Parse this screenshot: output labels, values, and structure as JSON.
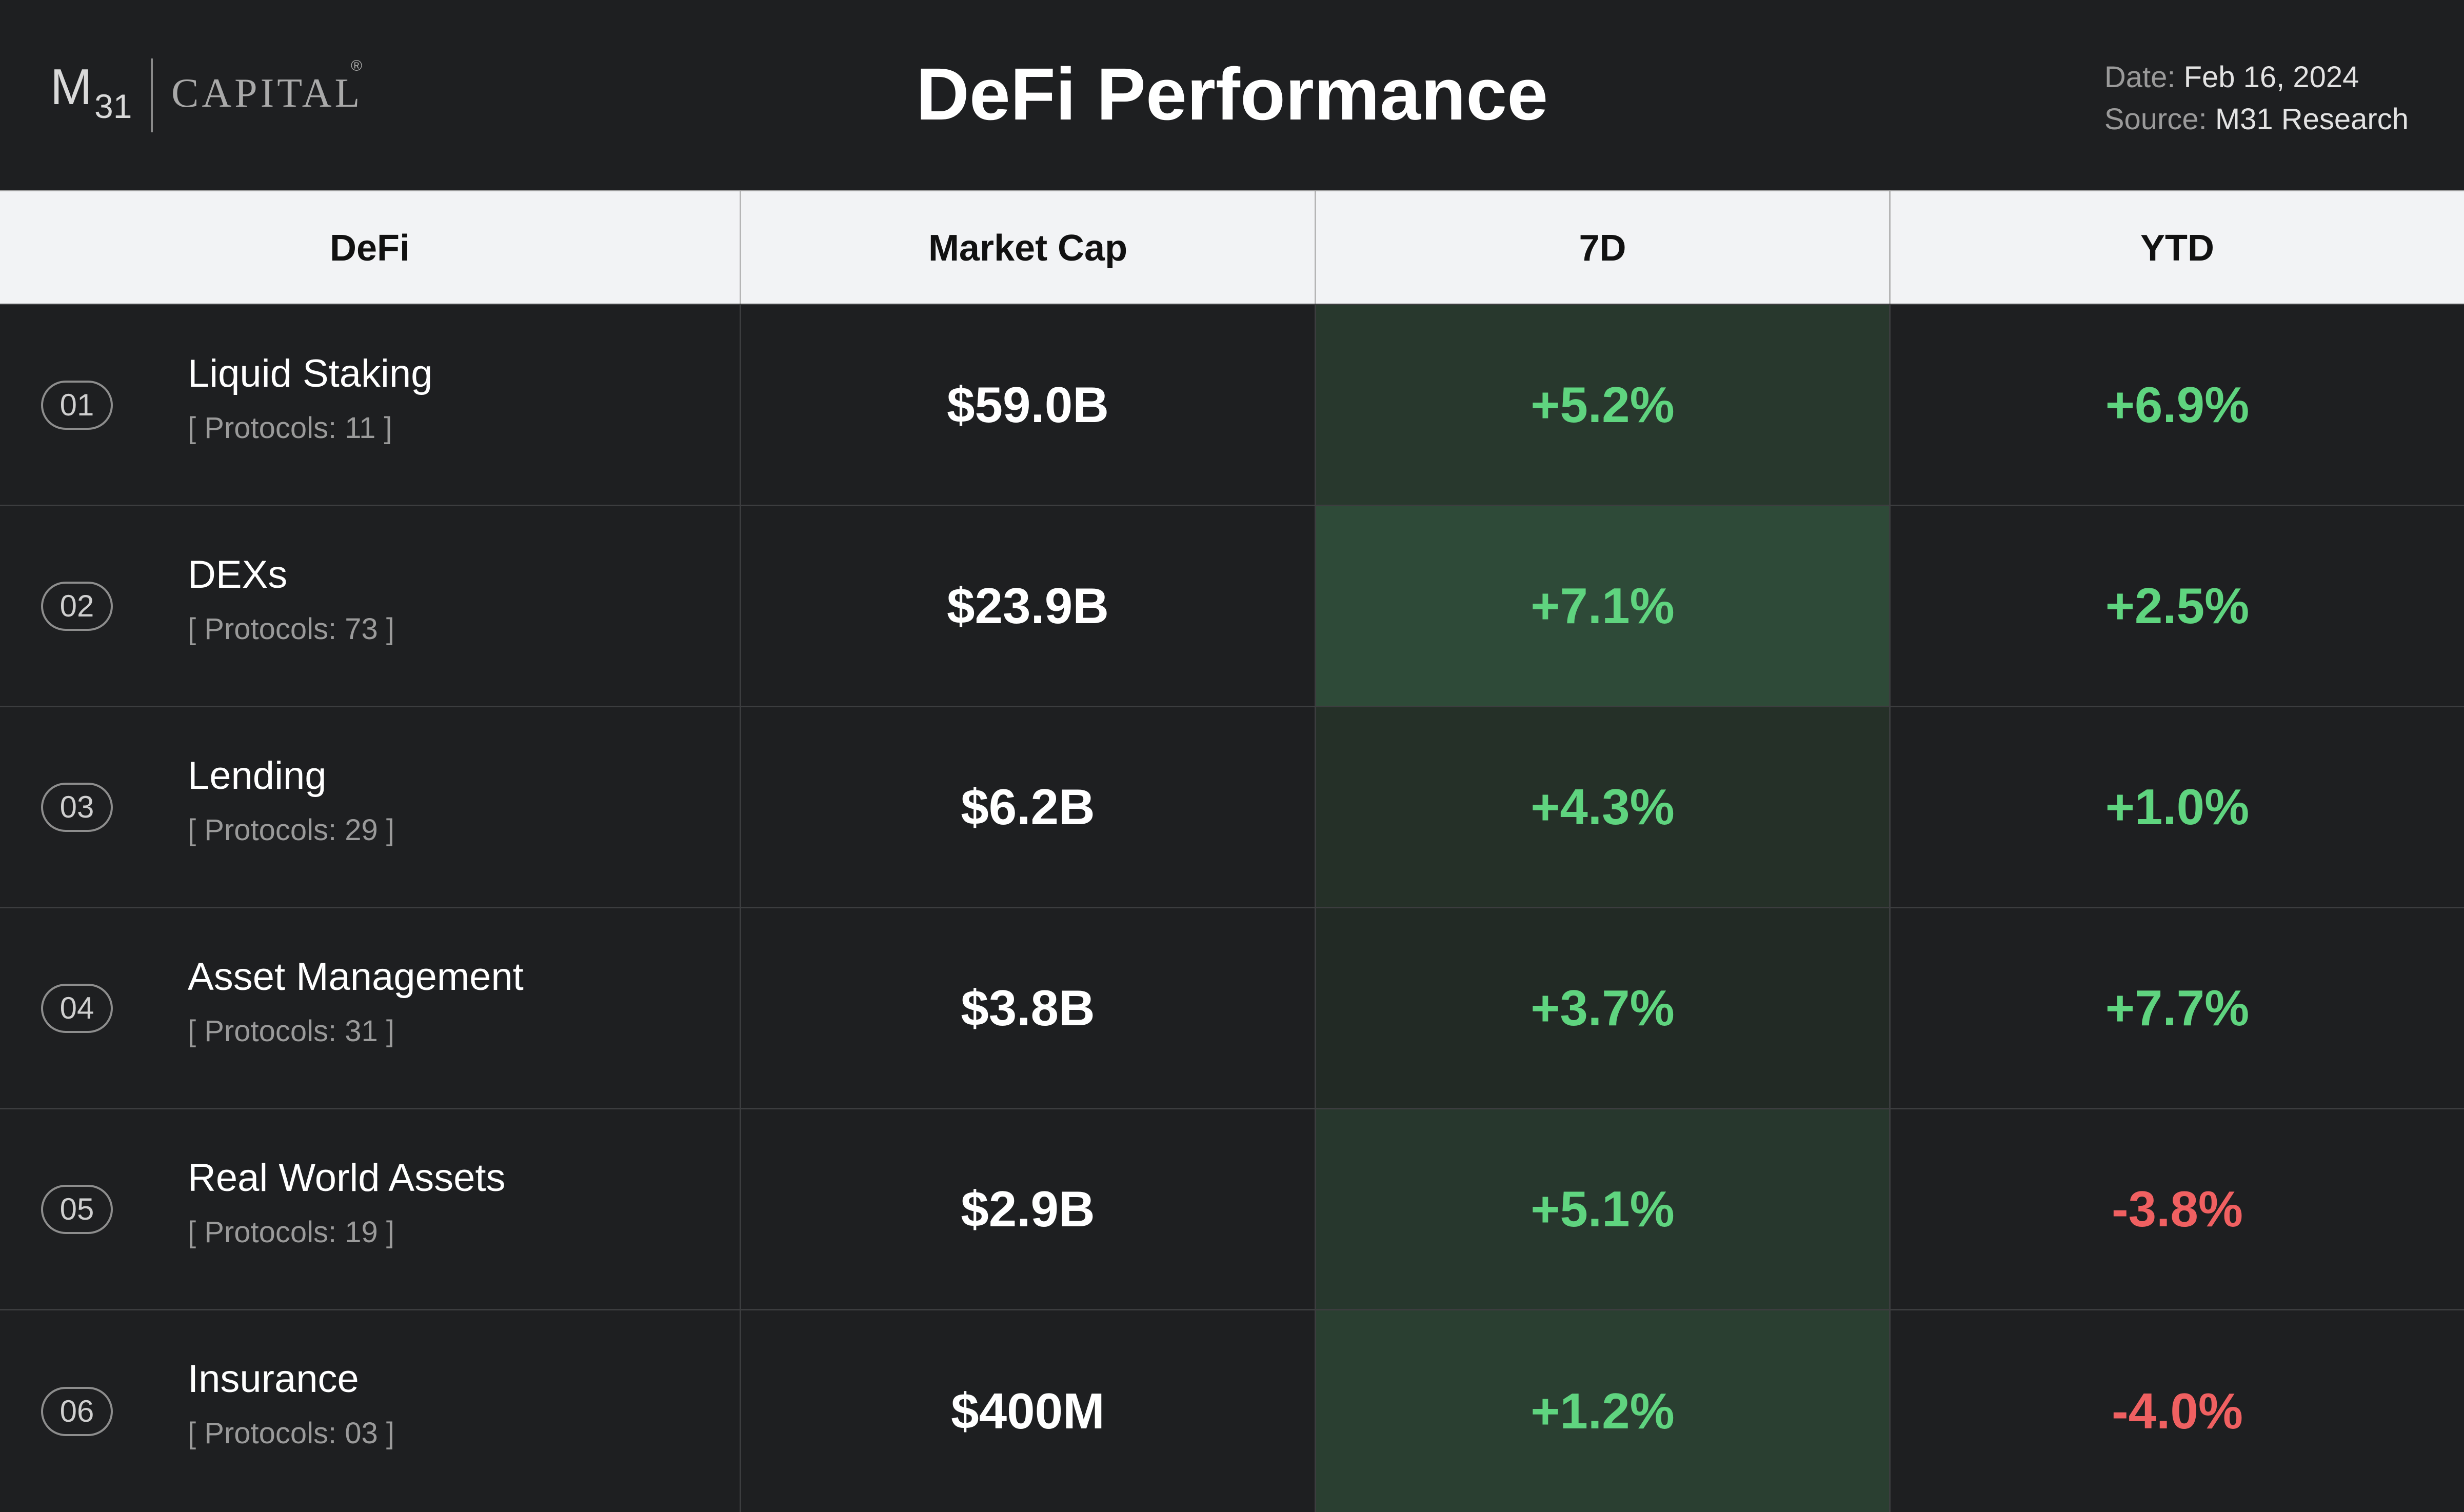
{
  "header": {
    "logo_m": "M",
    "logo_31": "31",
    "logo_capital": "CAPITAL",
    "logo_reg": "®",
    "title": "DeFi Performance",
    "date_label": "Date:",
    "date_value": "Feb 16, 2024",
    "source_label": "Source:",
    "source_value": "M31 Research"
  },
  "chart_data": {
    "type": "table",
    "title": "DeFi Performance",
    "columns": [
      "DeFi",
      "Market Cap",
      "7D",
      "YTD"
    ],
    "rows": [
      {
        "rank": "01",
        "name": "Liquid Staking",
        "protocols": "[ Protocols: 11 ]",
        "market_cap": "$59.0B",
        "d7": "+5.2%",
        "ytd": "+6.9%",
        "d7_value": 5.2,
        "ytd_value": 6.9
      },
      {
        "rank": "02",
        "name": "DEXs",
        "protocols": "[ Protocols: 73 ]",
        "market_cap": "$23.9B",
        "d7": "+7.1%",
        "ytd": "+2.5%",
        "d7_value": 7.1,
        "ytd_value": 2.5
      },
      {
        "rank": "03",
        "name": "Lending",
        "protocols": "[ Protocols: 29 ]",
        "market_cap": "$6.2B",
        "d7": "+4.3%",
        "ytd": "+1.0%",
        "d7_value": 4.3,
        "ytd_value": 1.0
      },
      {
        "rank": "04",
        "name": "Asset Management",
        "protocols": "[ Protocols: 31 ]",
        "market_cap": "$3.8B",
        "d7": "+3.7%",
        "ytd": "+7.7%",
        "d7_value": 3.7,
        "ytd_value": 7.7
      },
      {
        "rank": "05",
        "name": "Real World Assets",
        "protocols": "[ Protocols: 19 ]",
        "market_cap": "$2.9B",
        "d7": "+5.1%",
        "ytd": "-3.8%",
        "d7_value": 5.1,
        "ytd_value": -3.8
      },
      {
        "rank": "06",
        "name": "Insurance",
        "protocols": "[ Protocols: 03 ]",
        "market_cap": "$400M",
        "d7": "+1.2%",
        "ytd": "-4.0%",
        "d7_value": 1.2,
        "ytd_value": -4.0
      }
    ]
  },
  "colors": {
    "background": "#1e1f21",
    "positive": "#5fd47f",
    "negative": "#f06061",
    "heat_low": "#222924",
    "heat_high": "#2e4a38"
  }
}
